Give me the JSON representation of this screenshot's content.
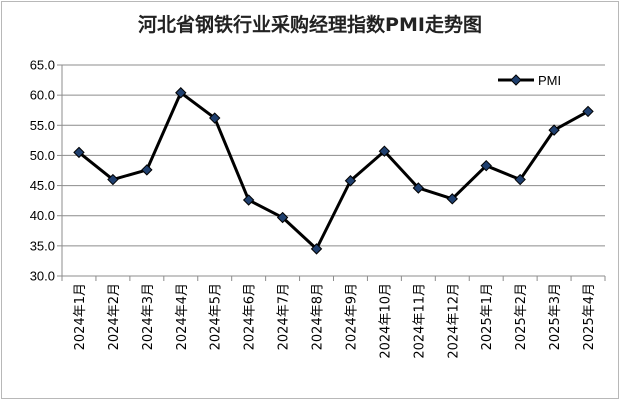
{
  "chart_data": {
    "type": "line",
    "title": "河北省钢铁行业采购经理指数PMI走势图",
    "xlabel": "",
    "ylabel": "",
    "categories": [
      "2024年1月",
      "2024年2月",
      "2024年3月",
      "2024年4月",
      "2024年5月",
      "2024年6月",
      "2024年7月",
      "2024年8月",
      "2024年9月",
      "2024年10月",
      "2024年11月",
      "2024年12月",
      "2025年1月",
      "2025年2月",
      "2025年3月",
      "2025年4月"
    ],
    "series": [
      {
        "name": "PMI",
        "values": [
          50.5,
          46.0,
          47.6,
          60.4,
          56.2,
          42.6,
          39.7,
          34.5,
          45.8,
          50.7,
          44.6,
          42.8,
          48.3,
          46.0,
          54.2,
          57.3
        ],
        "color": "#000000",
        "marker": "diamond",
        "marker_color": "#1f3f6e"
      }
    ],
    "ylim": [
      30.0,
      65.0
    ],
    "yticks": [
      "30.0",
      "35.0",
      "40.0",
      "45.0",
      "50.0",
      "55.0",
      "60.0",
      "65.0"
    ],
    "grid": true,
    "legend": "top-right"
  }
}
